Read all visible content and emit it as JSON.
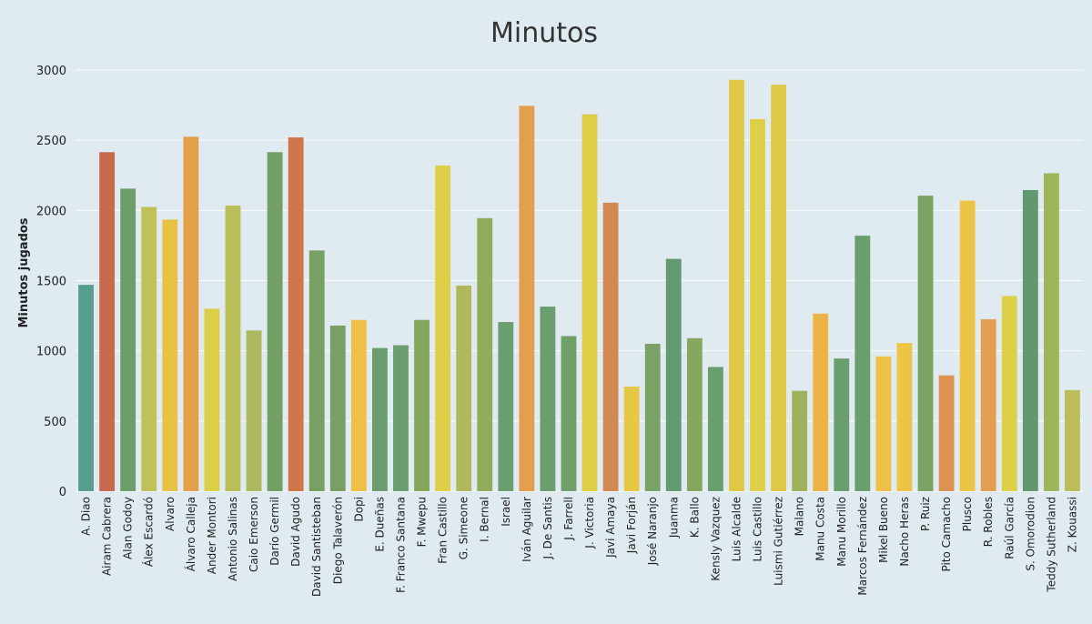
{
  "chart_data": {
    "type": "bar",
    "title": "Minutos",
    "xlabel": "",
    "ylabel": "Minutos jugados",
    "ylim": [
      0,
      3000
    ],
    "yticks": [
      0,
      500,
      1000,
      1500,
      2000,
      2500,
      3000
    ],
    "grid": true,
    "categories": [
      "A. Diao",
      "Airam Cabrera",
      "Alan Godoy",
      "Álex Escardó",
      "Alvaro",
      "Álvaro Calleja",
      "Ander Montori",
      "Antonio Salinas",
      "Caio Emerson",
      "Darío Germil",
      "David Agudo",
      "David Santisteban",
      "Diego Talaverón",
      "Dopi",
      "E. Dueñas",
      "F. Franco Santana",
      "F. Mwepu",
      "Fran Castillo",
      "G. Simeone",
      "I. Bernal",
      "Israel",
      "Iván Aguilar",
      "J. De Santis",
      "J. Farrell",
      "J. Victoria",
      "Javi Amaya",
      "Javi Forján",
      "José Naranjo",
      "Juanma",
      "K. Ballo",
      "Kensly Vazquez",
      "Luis Alcalde",
      "Luis Castillo",
      "Luismi Gutiérrez",
      "Malano",
      "Manu Costa",
      "Manu Morillo",
      "Marcos Fernández",
      "Mikel Bueno",
      "Nacho Heras",
      "P. Ruiz",
      "Pito Camacho",
      "Plusco",
      "R. Robles",
      "Raúl García",
      "S. Omorodion",
      "Teddy Sutherland",
      "Z. Kouassi"
    ],
    "values": [
      1470,
      2415,
      2155,
      2025,
      1935,
      2525,
      1300,
      2035,
      1145,
      2415,
      2520,
      1715,
      1180,
      1220,
      1020,
      1040,
      1220,
      2320,
      1465,
      1945,
      1205,
      2745,
      1315,
      1105,
      2685,
      2055,
      745,
      1050,
      1655,
      1090,
      885,
      2930,
      2650,
      2895,
      715,
      1265,
      945,
      1820,
      960,
      1055,
      2105,
      825,
      2070,
      1225,
      1390,
      2145,
      2265,
      720
    ],
    "colors": [
      "#589e8c",
      "#c96a4f",
      "#6c9e6b",
      "#bfc256",
      "#e9c145",
      "#e4a049",
      "#ddcf45",
      "#b9be58",
      "#aeb85c",
      "#739f65",
      "#cf7549",
      "#77a063",
      "#799f66",
      "#eec146",
      "#6b9e6e",
      "#6b9e6e",
      "#86a85e",
      "#dfcf46",
      "#b0b85b",
      "#91ad5a",
      "#6b9e6e",
      "#e39f4d",
      "#6b9e6e",
      "#709f6a",
      "#ddce46",
      "#d38a52",
      "#e7c844",
      "#7aa267",
      "#649a71",
      "#86a85e",
      "#6b9e6e",
      "#e1c746",
      "#dfcf46",
      "#e1c746",
      "#9fb15c",
      "#ecb346",
      "#6b9e6e",
      "#6b9e6e",
      "#eec146",
      "#ecc546",
      "#7aa263",
      "#dd9252",
      "#ecc546",
      "#e29f52",
      "#dcd146",
      "#62986f",
      "#9fb55a",
      "#bcbd58"
    ]
  }
}
